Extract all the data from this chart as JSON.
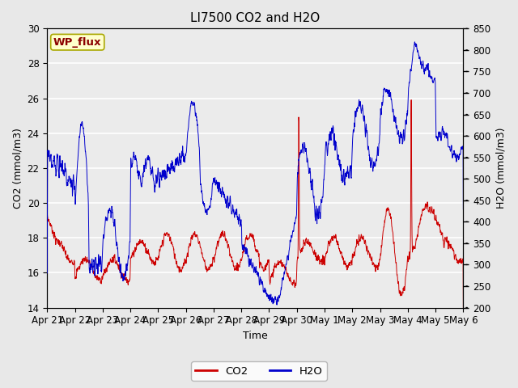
{
  "title": "LI7500 CO2 and H2O",
  "xlabel": "Time",
  "ylabel_left": "CO2 (mmol/m3)",
  "ylabel_right": "H2O (mmol/m3)",
  "ylim_left": [
    14,
    30
  ],
  "ylim_right": [
    200,
    850
  ],
  "yticks_left": [
    14,
    16,
    18,
    20,
    22,
    24,
    26,
    28,
    30
  ],
  "yticks_right": [
    200,
    250,
    300,
    350,
    400,
    450,
    500,
    550,
    600,
    650,
    700,
    750,
    800,
    850
  ],
  "x_labels": [
    "Apr 21",
    "Apr 22",
    "Apr 23",
    "Apr 24",
    "Apr 25",
    "Apr 26",
    "Apr 27",
    "Apr 28",
    "Apr 29",
    "Apr 30",
    "May 1",
    "May 2",
    "May 3",
    "May 4",
    "May 5",
    "May 6"
  ],
  "co2_color": "#cc0000",
  "h2o_color": "#0000cc",
  "legend_co2": "CO2",
  "legend_h2o": "H2O",
  "wp_flux_text": "WP_flux",
  "wp_flux_bg": "#ffffcc",
  "wp_flux_border": "#aaa800",
  "wp_flux_text_color": "#8b0000",
  "background_color": "#e8e8e8",
  "plot_bg_color": "#ebebeb",
  "grid_color": "#ffffff",
  "title_fontsize": 11,
  "label_fontsize": 9,
  "tick_fontsize": 8.5
}
